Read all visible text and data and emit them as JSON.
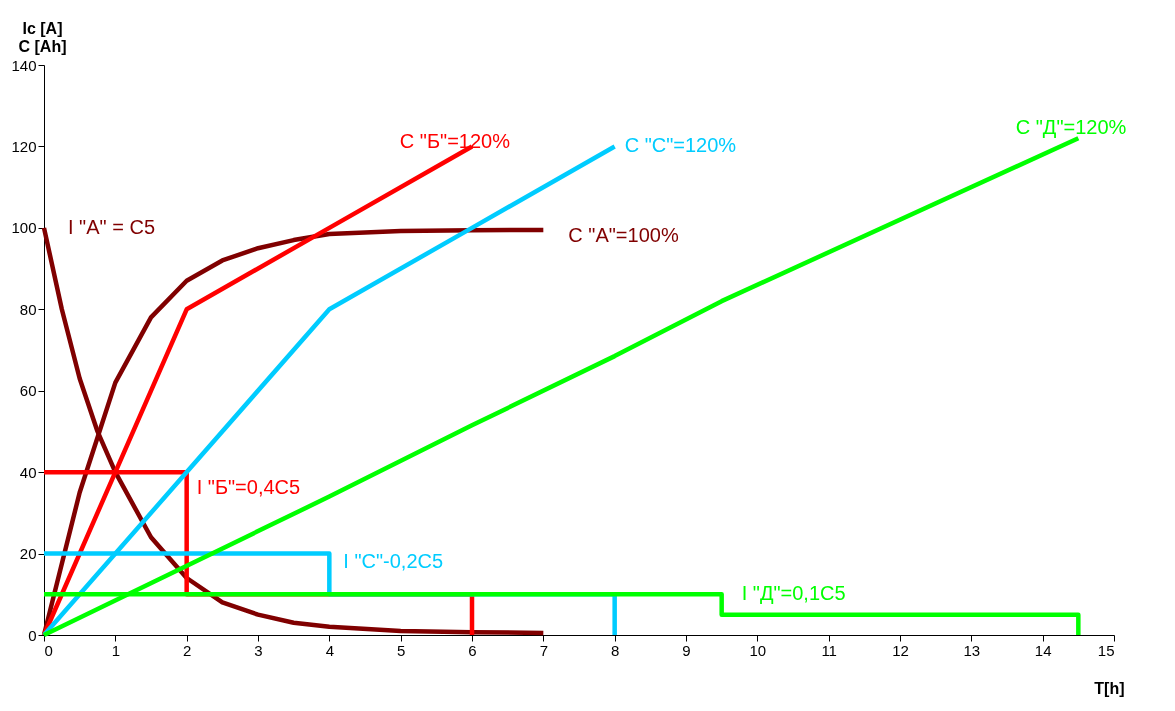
{
  "chart_data": {
    "type": "line",
    "xlabel": "T[h]",
    "ylabel": "Ic [A]\nC [Ah]",
    "xlim": [
      0,
      15
    ],
    "xticks": [
      0,
      1,
      2,
      3,
      4,
      5,
      6,
      7,
      8,
      9,
      10,
      11,
      12,
      13,
      14,
      15
    ],
    "ylim": [
      0,
      140
    ],
    "yticks": [
      0,
      20,
      40,
      60,
      80,
      100,
      120,
      140
    ],
    "grid": false,
    "marker": "none",
    "line_style": "solid",
    "series": [
      {
        "color": "#800000",
        "x": [
          0,
          0.25,
          0.5,
          0.75,
          1,
          1.5,
          2,
          2.5,
          3,
          3.5,
          4,
          5,
          6,
          7
        ],
        "values": [
          100,
          80,
          63,
          50,
          40,
          24,
          14,
          8,
          5,
          3,
          2,
          1,
          0.7,
          0.5
        ]
      },
      {
        "color": "#800000",
        "x": [
          0,
          0.5,
          1,
          1.5,
          2,
          2.5,
          3,
          3.5,
          4,
          5,
          6,
          7
        ],
        "values": [
          0,
          35,
          62,
          78,
          87,
          92,
          95,
          97,
          98.5,
          99.2,
          99.4,
          99.5
        ]
      },
      {
        "color": "#ff0000",
        "x": [
          0,
          2,
          2,
          6,
          6
        ],
        "values": [
          40,
          40,
          10,
          10,
          0
        ]
      },
      {
        "color": "#ff0000",
        "x": [
          0,
          2,
          4,
          6
        ],
        "values": [
          0,
          80,
          100,
          120
        ]
      },
      {
        "color": "#00ccff",
        "x": [
          0,
          4,
          4,
          8,
          8
        ],
        "values": [
          20,
          20,
          10,
          10,
          0
        ]
      },
      {
        "color": "#00ccff",
        "x": [
          0,
          4,
          6,
          8
        ],
        "values": [
          0,
          80,
          100,
          120
        ]
      },
      {
        "color": "#00ff00",
        "x": [
          0,
          9.5,
          9.5,
          14.5,
          14.5
        ],
        "values": [
          10,
          10,
          5,
          5,
          0
        ]
      },
      {
        "color": "#00ff00",
        "x": [
          0,
          4,
          6,
          8,
          9.5,
          14.5
        ],
        "values": [
          0,
          34,
          51.5,
          68.5,
          82,
          122
        ]
      }
    ],
    "annotations": [
      {
        "text": "I \"A\" = C5",
        "x": 0,
        "y": 100
      },
      {
        "text": "C \"A\"=100%",
        "x": 7,
        "y": 99.5
      },
      {
        "text": "I \"Б\"=0,4C5",
        "x": 2,
        "y": 40
      },
      {
        "text": "C \"Б\"=120%",
        "x": 6,
        "y": 120
      },
      {
        "text": "I \"C\"-0,2C5",
        "x": 4,
        "y": 20
      },
      {
        "text": "C \"C\"=120%",
        "x": 8,
        "y": 120
      },
      {
        "text": "I \"Д\"=0,1C5",
        "x": 9.5,
        "y": 10
      },
      {
        "text": "C \"Д\"=120%",
        "x": 14.5,
        "y": 122
      }
    ]
  }
}
